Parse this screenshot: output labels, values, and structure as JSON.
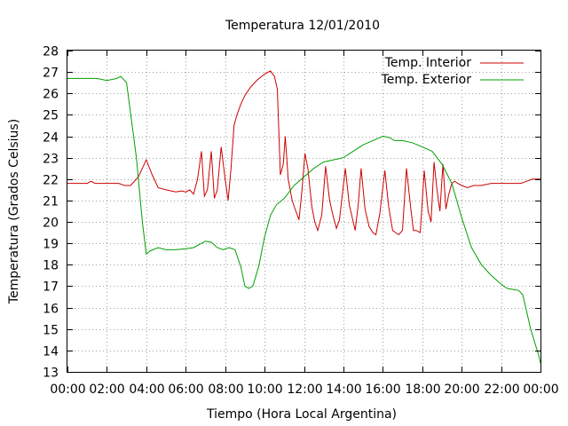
{
  "chart_data": {
    "type": "line",
    "title": "Temperatura 12/01/2010",
    "xlabel": "Tiempo (Hora Local Argentina)",
    "ylabel": "Temperatura (Grados Celsius)",
    "xlim": [
      0,
      24
    ],
    "ylim": [
      13,
      28
    ],
    "x_tick_labels": [
      "00:00",
      "02:00",
      "04:00",
      "06:00",
      "08:00",
      "10:00",
      "12:00",
      "14:00",
      "16:00",
      "18:00",
      "20:00",
      "22:00",
      "00:00"
    ],
    "y_tick_labels": [
      "13",
      "14",
      "15",
      "16",
      "17",
      "18",
      "19",
      "20",
      "21",
      "22",
      "23",
      "24",
      "25",
      "26",
      "27",
      "28"
    ],
    "grid": true,
    "legend_position": "top-right",
    "series": [
      {
        "name": "Temp. Interior",
        "color": "#cc0000",
        "x": [
          0,
          1,
          1.2,
          1.4,
          2.6,
          2.9,
          3.2,
          3.6,
          3.8,
          4.0,
          4.3,
          4.6,
          5.0,
          5.5,
          5.8,
          6.0,
          6.2,
          6.4,
          6.6,
          6.8,
          6.95,
          7.1,
          7.3,
          7.45,
          7.6,
          7.8,
          8.0,
          8.15,
          8.3,
          8.45,
          8.6,
          8.8,
          9.0,
          9.3,
          9.6,
          10.0,
          10.3,
          10.5,
          10.65,
          10.8,
          10.95,
          11.05,
          11.2,
          11.4,
          11.55,
          11.75,
          11.9,
          12.05,
          12.2,
          12.4,
          12.55,
          12.7,
          12.9,
          13.1,
          13.3,
          13.5,
          13.65,
          13.8,
          14.1,
          14.3,
          14.45,
          14.6,
          14.75,
          14.9,
          15.1,
          15.3,
          15.5,
          15.65,
          15.85,
          16.1,
          16.3,
          16.5,
          16.65,
          16.8,
          17.0,
          17.2,
          17.4,
          17.55,
          17.7,
          17.9,
          18.1,
          18.3,
          18.45,
          18.6,
          18.75,
          18.9,
          19.05,
          19.2,
          19.35,
          19.5,
          19.65,
          19.8,
          20.0,
          20.3,
          20.6,
          21.0,
          21.5,
          22.0,
          22.5,
          22.8,
          23.0,
          23.3,
          23.6,
          24
        ],
        "values": [
          21.8,
          21.8,
          21.9,
          21.8,
          21.8,
          21.7,
          21.7,
          22.1,
          22.5,
          22.9,
          22.2,
          21.6,
          21.5,
          21.4,
          21.45,
          21.4,
          21.5,
          21.3,
          22.0,
          23.3,
          21.2,
          21.5,
          23.3,
          21.1,
          21.5,
          23.5,
          22.0,
          21.0,
          22.5,
          24.5,
          25.0,
          25.5,
          25.9,
          26.3,
          26.6,
          26.9,
          27.05,
          26.8,
          26.2,
          22.2,
          22.7,
          24.0,
          22.0,
          21.0,
          20.6,
          20.1,
          21.5,
          23.2,
          22.5,
          20.7,
          20.0,
          19.6,
          20.3,
          22.6,
          21.0,
          20.2,
          19.7,
          20.1,
          22.5,
          20.8,
          20.2,
          19.6,
          20.8,
          22.5,
          20.6,
          19.8,
          19.5,
          19.4,
          20.4,
          22.4,
          20.7,
          19.6,
          19.5,
          19.4,
          19.6,
          22.5,
          20.8,
          19.6,
          19.6,
          19.5,
          22.4,
          20.5,
          20.0,
          22.8,
          21.5,
          20.5,
          22.7,
          20.6,
          21.3,
          21.8,
          21.9,
          21.8,
          21.7,
          21.6,
          21.7,
          21.7,
          21.8,
          21.8,
          21.8,
          21.8,
          21.8,
          21.9,
          22.0,
          22.0
        ]
      },
      {
        "name": "Temp. Exterior",
        "color": "#00a000",
        "x": [
          0,
          1.5,
          2.0,
          2.5,
          2.7,
          3.0,
          3.5,
          3.8,
          4.0,
          4.2,
          4.6,
          5.0,
          5.5,
          6.0,
          6.4,
          6.8,
          7.0,
          7.3,
          7.6,
          7.9,
          8.2,
          8.5,
          8.8,
          9.0,
          9.2,
          9.4,
          9.7,
          10.0,
          10.3,
          10.6,
          11.0,
          11.5,
          12.0,
          12.5,
          13.0,
          13.5,
          14.0,
          14.5,
          15.0,
          15.5,
          16.0,
          16.3,
          16.6,
          17.0,
          17.5,
          18.0,
          18.5,
          19.0,
          19.5,
          20.0,
          20.5,
          21.0,
          21.5,
          22.0,
          22.3,
          22.6,
          22.9,
          23.1,
          23.3,
          23.5,
          23.7,
          23.9,
          24
        ],
        "values": [
          26.7,
          26.7,
          26.6,
          26.7,
          26.8,
          26.5,
          23.0,
          20.0,
          18.5,
          18.65,
          18.8,
          18.7,
          18.7,
          18.75,
          18.8,
          19.0,
          19.1,
          19.05,
          18.8,
          18.7,
          18.8,
          18.7,
          17.9,
          17.0,
          16.9,
          17.0,
          17.9,
          19.3,
          20.3,
          20.8,
          21.1,
          21.7,
          22.1,
          22.5,
          22.8,
          22.9,
          23.0,
          23.3,
          23.6,
          23.8,
          24.0,
          23.95,
          23.8,
          23.8,
          23.7,
          23.5,
          23.3,
          22.7,
          21.8,
          20.2,
          18.8,
          18.0,
          17.5,
          17.1,
          16.9,
          16.85,
          16.8,
          16.6,
          15.8,
          15.0,
          14.4,
          13.8,
          13.4
        ]
      }
    ]
  }
}
